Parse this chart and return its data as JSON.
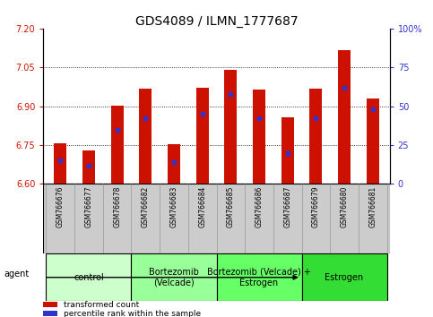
{
  "title": "GDS4089 / ILMN_1777687",
  "samples": [
    "GSM766676",
    "GSM766677",
    "GSM766678",
    "GSM766682",
    "GSM766683",
    "GSM766684",
    "GSM766685",
    "GSM766686",
    "GSM766687",
    "GSM766679",
    "GSM766680",
    "GSM766681"
  ],
  "red_values": [
    6.758,
    6.728,
    6.902,
    6.968,
    6.752,
    6.972,
    7.042,
    6.966,
    6.858,
    6.968,
    7.115,
    6.928
  ],
  "blue_percentiles": [
    15,
    12,
    35,
    42,
    14,
    45,
    58,
    42,
    20,
    42,
    62,
    48
  ],
  "ylim_left": [
    6.6,
    7.2
  ],
  "ylim_right": [
    0,
    100
  ],
  "yticks_left": [
    6.6,
    6.75,
    6.9,
    7.05,
    7.2
  ],
  "yticks_right": [
    0,
    25,
    50,
    75,
    100
  ],
  "bar_color": "#cc1100",
  "marker_color": "#3333cc",
  "base_value": 6.6,
  "groups": [
    {
      "label": "control",
      "start": 0,
      "end": 3,
      "color": "#ccffcc"
    },
    {
      "label": "Bortezomib\n(Velcade)",
      "start": 3,
      "end": 6,
      "color": "#99ff99"
    },
    {
      "label": "Bortezomib (Velcade) +\nEstrogen",
      "start": 6,
      "end": 9,
      "color": "#66ff66"
    },
    {
      "label": "Estrogen",
      "start": 9,
      "end": 12,
      "color": "#33dd33"
    }
  ],
  "legend_items": [
    {
      "color": "#cc1100",
      "label": "transformed count"
    },
    {
      "color": "#3333cc",
      "label": "percentile rank within the sample"
    }
  ],
  "title_fontsize": 10,
  "tick_fontsize": 7,
  "label_fontsize": 6,
  "group_fontsize": 7,
  "bar_width": 0.45
}
